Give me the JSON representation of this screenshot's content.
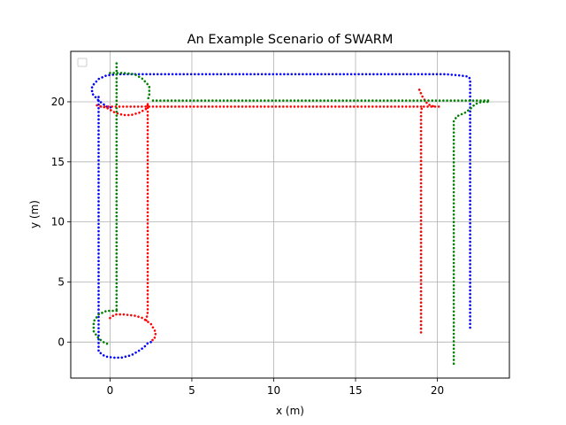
{
  "chart_data": {
    "type": "scatter",
    "title": "An Example Scenario of SWARM",
    "xlabel": "x (m)",
    "ylabel": "y (m)",
    "xlim": [
      -2.4,
      24.4
    ],
    "ylim": [
      -3.0,
      24.2
    ],
    "xticks": [
      0,
      5,
      10,
      15,
      20
    ],
    "yticks": [
      0,
      5,
      10,
      15,
      20
    ],
    "grid": true,
    "legend": "top-left",
    "series": [
      {
        "color": "#0000ff",
        "paths": [
          [
            [
              22.0,
              1.2
            ],
            [
              22.0,
              2.0
            ],
            [
              22.0,
              4.0
            ],
            [
              22.0,
              8.0
            ],
            [
              22.0,
              12.0
            ],
            [
              22.0,
              16.0
            ],
            [
              22.0,
              19.0
            ],
            [
              22.0,
              20.5
            ],
            [
              22.0,
              21.5
            ],
            [
              22.0,
              21.9
            ],
            [
              21.9,
              22.1
            ],
            [
              21.3,
              22.2
            ],
            [
              20.5,
              22.3
            ],
            [
              20.0,
              22.3
            ],
            [
              15.0,
              22.3
            ],
            [
              10.0,
              22.3
            ],
            [
              5.0,
              22.3
            ],
            [
              1.5,
              22.3
            ],
            [
              0.5,
              22.3
            ],
            [
              -0.2,
              22.2
            ],
            [
              -0.7,
              21.9
            ],
            [
              -1.1,
              21.3
            ],
            [
              -1.1,
              20.7
            ],
            [
              -0.7,
              20.1
            ],
            [
              -0.2,
              19.6
            ],
            [
              0.2,
              19.5
            ]
          ],
          [
            [
              -0.7,
              20.4
            ],
            [
              -0.7,
              18.0
            ],
            [
              -0.7,
              14.0
            ],
            [
              -0.7,
              10.0
            ],
            [
              -0.7,
              6.0
            ],
            [
              -0.7,
              2.0
            ],
            [
              -0.7,
              0.0
            ],
            [
              -0.7,
              -0.8
            ],
            [
              -0.3,
              -1.2
            ],
            [
              0.2,
              -1.3
            ],
            [
              0.7,
              -1.3
            ],
            [
              1.3,
              -1.1
            ],
            [
              1.8,
              -0.7
            ],
            [
              2.1,
              -0.4
            ],
            [
              2.3,
              -0.1
            ],
            [
              2.7,
              0.1
            ]
          ]
        ]
      },
      {
        "color": "#ff0000",
        "paths": [
          [
            [
              19.0,
              0.8
            ],
            [
              19.0,
              1.6
            ],
            [
              19.0,
              4.0
            ],
            [
              19.0,
              8.0
            ],
            [
              19.0,
              12.0
            ],
            [
              19.0,
              15.0
            ],
            [
              19.0,
              18.0
            ],
            [
              19.0,
              19.3
            ],
            [
              19.1,
              19.6
            ],
            [
              19.4,
              19.6
            ],
            [
              20.0,
              19.6
            ],
            [
              20.1,
              19.6
            ]
          ],
          [
            [
              18.9,
              21.0
            ],
            [
              19.1,
              20.4
            ],
            [
              19.4,
              19.8
            ],
            [
              19.8,
              19.6
            ]
          ],
          [
            [
              19.0,
              19.6
            ],
            [
              15.0,
              19.6
            ],
            [
              10.0,
              19.6
            ],
            [
              5.0,
              19.6
            ],
            [
              2.0,
              19.6
            ],
            [
              -0.7,
              19.6
            ]
          ],
          [
            [
              -0.8,
              19.7
            ],
            [
              -0.2,
              19.5
            ],
            [
              0.3,
              19.1
            ],
            [
              0.8,
              18.9
            ],
            [
              1.3,
              18.9
            ],
            [
              1.8,
              19.1
            ],
            [
              2.2,
              19.4
            ],
            [
              2.3,
              19.7
            ]
          ],
          [
            [
              2.3,
              19.8
            ],
            [
              2.3,
              17.0
            ],
            [
              2.3,
              13.0
            ],
            [
              2.3,
              9.0
            ],
            [
              2.3,
              5.0
            ],
            [
              2.3,
              2.5
            ],
            [
              2.2,
              1.7
            ]
          ],
          [
            [
              0.0,
              2.0
            ],
            [
              0.3,
              2.3
            ],
            [
              0.8,
              2.3
            ],
            [
              1.5,
              2.2
            ],
            [
              2.0,
              2.0
            ],
            [
              2.5,
              1.5
            ],
            [
              2.8,
              0.8
            ],
            [
              2.7,
              0.2
            ],
            [
              2.4,
              0.1
            ]
          ]
        ]
      },
      {
        "color": "#008000",
        "paths": [
          [
            [
              21.0,
              -1.8
            ],
            [
              21.0,
              -1.0
            ],
            [
              21.0,
              2.0
            ],
            [
              21.0,
              6.0
            ],
            [
              21.0,
              10.0
            ],
            [
              21.0,
              14.0
            ],
            [
              21.0,
              17.0
            ],
            [
              21.0,
              18.4
            ],
            [
              21.2,
              18.8
            ],
            [
              21.7,
              19.1
            ],
            [
              22.0,
              19.4
            ],
            [
              22.3,
              19.8
            ],
            [
              22.7,
              20.0
            ],
            [
              23.1,
              20.0
            ]
          ],
          [
            [
              23.1,
              20.1
            ],
            [
              20.0,
              20.1
            ],
            [
              15.0,
              20.1
            ],
            [
              10.0,
              20.1
            ],
            [
              5.0,
              20.1
            ],
            [
              2.5,
              20.1
            ],
            [
              2.4,
              20.1
            ]
          ],
          [
            [
              0.0,
              22.4
            ],
            [
              0.8,
              22.4
            ],
            [
              1.5,
              22.3
            ],
            [
              2.0,
              21.9
            ],
            [
              2.4,
              21.3
            ],
            [
              2.4,
              20.6
            ],
            [
              2.3,
              20.1
            ]
          ],
          [
            [
              0.4,
              23.2
            ],
            [
              0.4,
              22.0
            ],
            [
              0.4,
              18.0
            ],
            [
              0.4,
              14.0
            ],
            [
              0.4,
              10.0
            ],
            [
              0.4,
              6.0
            ],
            [
              0.4,
              3.0
            ],
            [
              0.4,
              2.5
            ]
          ],
          [
            [
              0.4,
              2.6
            ],
            [
              -0.2,
              2.6
            ],
            [
              -0.7,
              2.3
            ],
            [
              -1.0,
              1.7
            ],
            [
              -1.0,
              0.9
            ],
            [
              -0.7,
              0.3
            ],
            [
              -0.3,
              -0.1
            ],
            [
              0.0,
              -0.2
            ]
          ]
        ]
      }
    ]
  }
}
